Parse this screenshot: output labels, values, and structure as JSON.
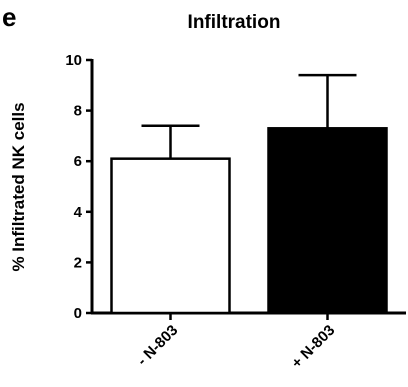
{
  "panel_letter": "e",
  "chart_data": {
    "type": "bar",
    "title": "Infiltration",
    "xlabel": "",
    "ylabel": "% Infiltrated NK cells",
    "ylim": [
      0,
      10
    ],
    "yticks": [
      "0",
      "2",
      "4",
      "6",
      "8",
      "10"
    ],
    "categories": [
      "- N-803",
      "+ N-803"
    ],
    "values": [
      6.1,
      7.3
    ],
    "errors": [
      1.3,
      2.1
    ],
    "bar_fills": [
      "#ffffff",
      "#000000"
    ],
    "grid": false,
    "legend": "none"
  }
}
